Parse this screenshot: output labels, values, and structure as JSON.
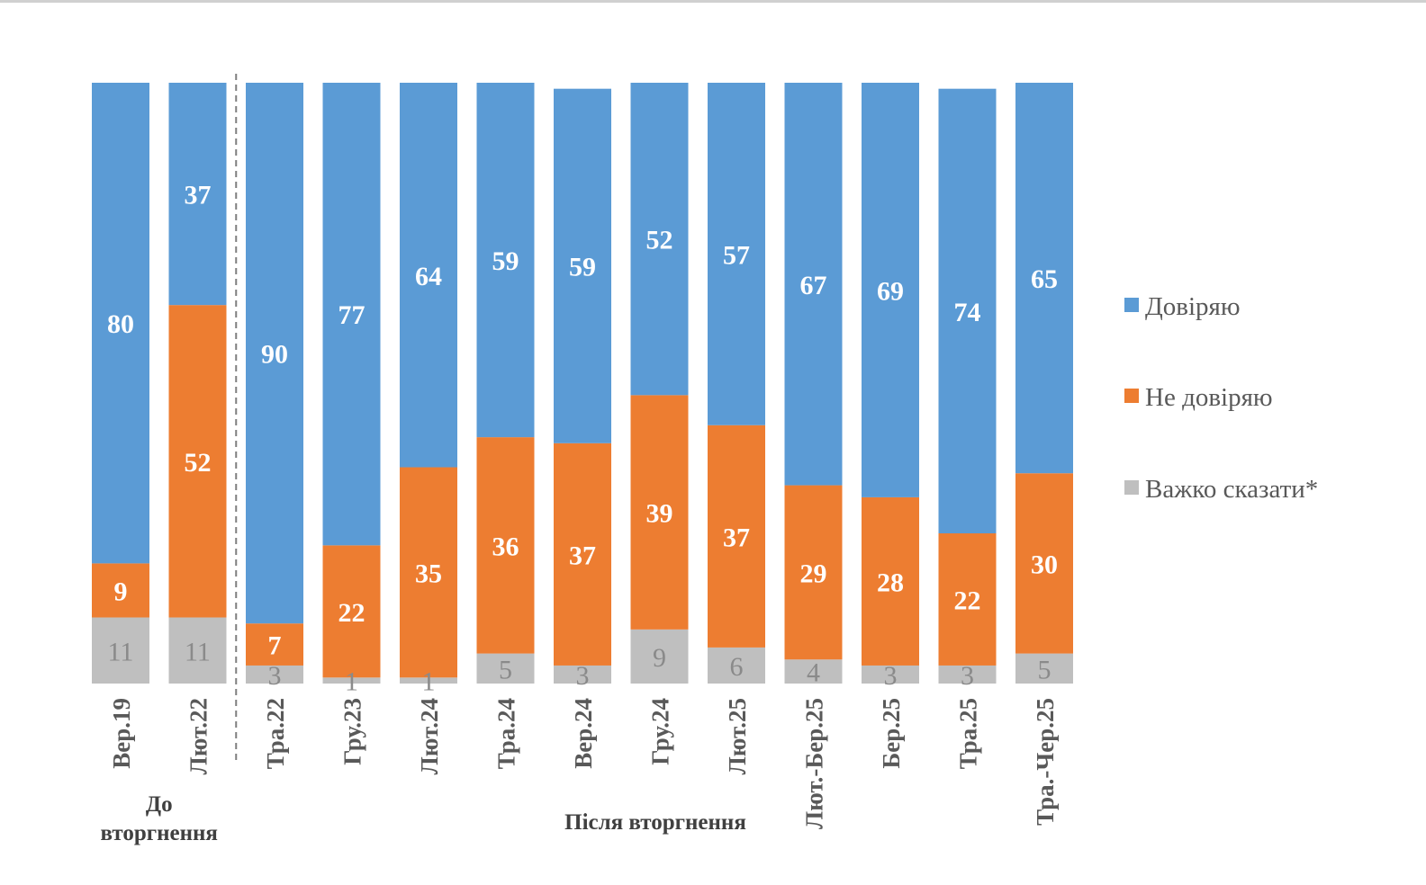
{
  "chart_data": {
    "type": "bar",
    "stacked": true,
    "percent": true,
    "title": "",
    "xlabel": "",
    "ylabel": "",
    "ylim": [
      0,
      100
    ],
    "grid": false,
    "legend_position": "right",
    "categories": [
      "Вер.19",
      "Лют.22",
      "Тра.22",
      "Гру.23",
      "Лют.24",
      "Тра.24",
      "Вер.24",
      "Гру.24",
      "Лют.25",
      "Лют.-Бер.25",
      "Бер.25",
      "Тра.25",
      "Тра.-Чер.25"
    ],
    "series": [
      {
        "name": "Довіряю",
        "color": "#5b9bd5",
        "values": [
          80,
          37,
          90,
          77,
          64,
          59,
          59,
          52,
          57,
          67,
          69,
          74,
          65
        ]
      },
      {
        "name": "Не довіряю",
        "color": "#ed7d31",
        "values": [
          9,
          52,
          7,
          22,
          35,
          36,
          37,
          39,
          37,
          29,
          28,
          22,
          30
        ]
      },
      {
        "name": "Важко сказати*",
        "color": "#bfbfbf",
        "values": [
          11,
          11,
          3,
          1,
          1,
          5,
          3,
          9,
          6,
          4,
          3,
          3,
          5
        ]
      }
    ],
    "groups": [
      {
        "label_lines": [
          "До",
          "вторгнення"
        ],
        "start": 0,
        "end": 1
      },
      {
        "label_lines": [
          "Після вторгнення"
        ],
        "start": 2,
        "end": 12
      }
    ],
    "divider_after_index": 1
  }
}
